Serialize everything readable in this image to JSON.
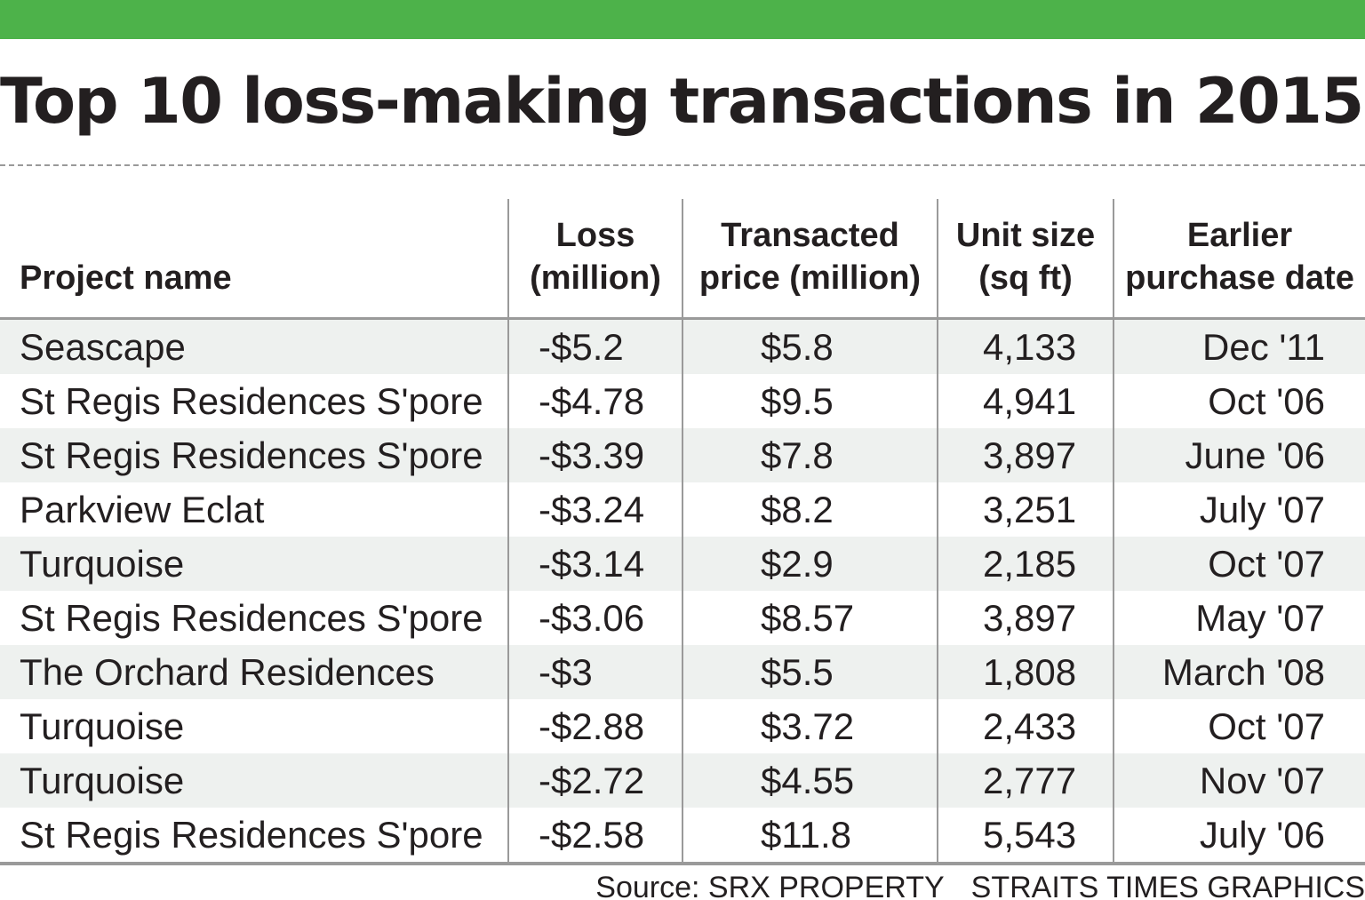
{
  "colors": {
    "top_bar": "#4db24a",
    "stripe": "#eef1ef",
    "rule": "#9a9a9a",
    "text": "#231f20"
  },
  "title": "Top 10 loss-making transactions in 2015",
  "chart_data": {
    "type": "table",
    "title": "Top 10 loss-making transactions in 2015",
    "columns": [
      {
        "lines": [
          "Project name"
        ]
      },
      {
        "lines": [
          "Loss",
          "(million)"
        ]
      },
      {
        "lines": [
          "Transacted",
          "price (million)"
        ]
      },
      {
        "lines": [
          "Unit size",
          "(sq ft)"
        ]
      },
      {
        "lines": [
          "Earlier",
          "purchase date"
        ]
      }
    ],
    "rows": [
      [
        "Seascape",
        "-$5.2",
        "$5.8",
        "4,133",
        "Dec '11"
      ],
      [
        "St Regis Residences S'pore",
        "-$4.78",
        "$9.5",
        "4,941",
        "Oct '06"
      ],
      [
        "St Regis Residences S'pore",
        "-$3.39",
        "$7.8",
        "3,897",
        "June '06"
      ],
      [
        "Parkview Eclat",
        "-$3.24",
        "$8.2",
        "3,251",
        "July '07"
      ],
      [
        "Turquoise",
        "-$3.14",
        "$2.9",
        "2,185",
        "Oct '07"
      ],
      [
        "St Regis Residences S'pore",
        "-$3.06",
        "$8.57",
        "3,897",
        "May '07"
      ],
      [
        "The Orchard Residences",
        "-$3",
        "$5.5",
        "1,808",
        "March '08"
      ],
      [
        "Turquoise",
        "-$2.88",
        "$3.72",
        "2,433",
        "Oct '07"
      ],
      [
        "Turquoise",
        "-$2.72",
        "$4.55",
        "2,777",
        "Nov '07"
      ],
      [
        "St Regis Residences S'pore",
        "-$2.58",
        "$11.8",
        "5,543",
        "July '06"
      ]
    ],
    "source": "Source: SRX PROPERTY",
    "credit": "STRAITS TIMES GRAPHICS"
  }
}
